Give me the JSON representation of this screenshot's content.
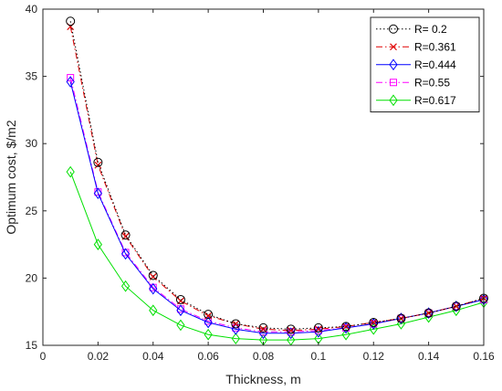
{
  "chart_data": {
    "type": "line",
    "title": "",
    "xlabel": "Thickness, m",
    "ylabel": "Optimum cost, $/m2",
    "xlim": [
      0,
      0.16
    ],
    "ylim": [
      15,
      40
    ],
    "xticks": [
      0,
      0.02,
      0.04,
      0.06,
      0.08,
      0.1,
      0.12,
      0.14,
      0.16
    ],
    "xtick_labels": [
      "0",
      "0.02",
      "0.04",
      "0.06",
      "0.08",
      "0.1",
      "0.12",
      "0.14",
      "0.16"
    ],
    "yticks": [
      15,
      20,
      25,
      30,
      35,
      40
    ],
    "ytick_labels": [
      "15",
      "20",
      "25",
      "30",
      "35",
      "40"
    ],
    "grid": false,
    "legend_position": "top-right",
    "x": [
      0.01,
      0.02,
      0.03,
      0.04,
      0.05,
      0.06,
      0.07,
      0.08,
      0.09,
      0.1,
      0.11,
      0.12,
      0.13,
      0.14,
      0.15,
      0.16
    ],
    "series": [
      {
        "name": "R= 0.2",
        "color": "#000000",
        "dash": "dotted",
        "marker": "circle",
        "values": [
          39.1,
          28.6,
          23.2,
          20.2,
          18.4,
          17.3,
          16.6,
          16.3,
          16.2,
          16.3,
          16.4,
          16.7,
          17.0,
          17.4,
          17.9,
          18.5
        ]
      },
      {
        "name": "R=0.361",
        "color": "#e00000",
        "dash": "dashdot",
        "marker": "x",
        "values": [
          38.7,
          28.4,
          23.1,
          20.1,
          18.3,
          17.2,
          16.6,
          16.2,
          16.1,
          16.2,
          16.4,
          16.7,
          17.0,
          17.4,
          17.9,
          18.5
        ]
      },
      {
        "name": "R=0.444",
        "color": "#0000ff",
        "dash": "solid",
        "marker": "diamond",
        "values": [
          34.6,
          26.3,
          21.8,
          19.2,
          17.6,
          16.7,
          16.2,
          15.9,
          15.9,
          16.0,
          16.3,
          16.6,
          17.0,
          17.4,
          17.9,
          18.4
        ]
      },
      {
        "name": "R=0.55",
        "color": "#ff00ff",
        "dash": "dashdot",
        "marker": "square",
        "values": [
          34.9,
          26.4,
          21.9,
          19.3,
          17.7,
          16.8,
          16.3,
          16.0,
          16.0,
          16.1,
          16.3,
          16.6,
          17.0,
          17.4,
          17.9,
          18.4
        ]
      },
      {
        "name": "R=0.617",
        "color": "#00e000",
        "dash": "solid",
        "marker": "diamond",
        "values": [
          27.9,
          22.5,
          19.4,
          17.6,
          16.5,
          15.8,
          15.5,
          15.4,
          15.4,
          15.5,
          15.8,
          16.2,
          16.6,
          17.1,
          17.6,
          18.2
        ]
      }
    ]
  }
}
